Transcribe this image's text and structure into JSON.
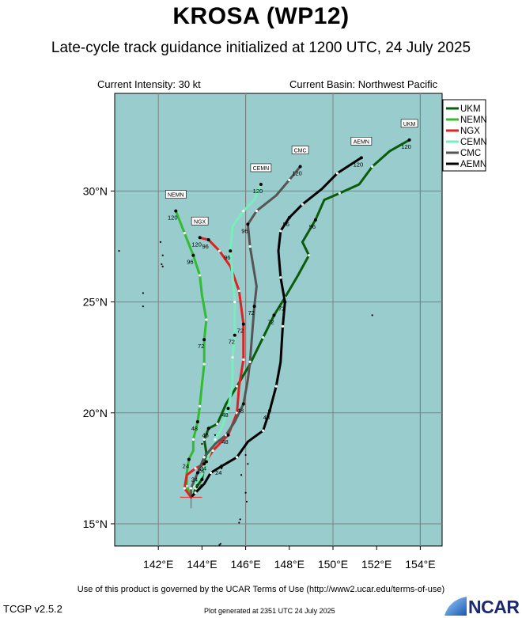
{
  "header": {
    "title": "KROSA (WP12)",
    "subtitle": "Late-cycle track guidance initialized at 1200 UTC, 24 July 2025",
    "intensity": "Current Intensity: 30 kt",
    "basin": "Current Basin: Northwest Pacific"
  },
  "footer": {
    "terms": "Use of this product is governed by the UCAR Terms of Use (http://www2.ucar.edu/terms-of-use)",
    "version": "TCGP v2.5.2",
    "plotted": "Plot generated at 2351 UTC  24 July 2025",
    "logo": "NCAR"
  },
  "colors": {
    "ocean": "#99cccc",
    "grid": "#808080",
    "UKM": "#0a5c0a",
    "NEMN": "#33bb33",
    "NGX": "#dd2222",
    "CEMN": "#77eebb",
    "CMC": "#555555",
    "AEMN": "#000000",
    "center": "#ff2222"
  },
  "chart_data": {
    "type": "line",
    "title": "KROSA (WP12)",
    "xlabel": "",
    "ylabel": "",
    "xlim": [
      140.0,
      155.0
    ],
    "ylim": [
      14.0,
      34.4
    ],
    "x_ticks": [
      142,
      144,
      146,
      148,
      150,
      152,
      154
    ],
    "x_tick_labels": [
      "142°E",
      "144°E",
      "146°E",
      "148°E",
      "150°E",
      "152°E",
      "154°E"
    ],
    "y_ticks": [
      15,
      20,
      25,
      30
    ],
    "y_tick_labels": [
      "15°N",
      "20°N",
      "25°N",
      "30°N"
    ],
    "grid": true,
    "legend_position": "top-right",
    "initial_position": [
      143.5,
      16.2
    ],
    "series": [
      {
        "name": "UKM",
        "points": [
          [
            143.5,
            16.2
          ],
          [
            143.7,
            16.6
          ],
          [
            144.0,
            17.0
          ],
          [
            144.1,
            17.6
          ],
          [
            144.2,
            18.2
          ],
          [
            144.1,
            18.8
          ],
          [
            144.3,
            19.3
          ],
          [
            144.7,
            19.5
          ],
          [
            145.1,
            20.4
          ],
          [
            145.6,
            21.2
          ],
          [
            146.2,
            22.2
          ],
          [
            146.8,
            23.4
          ],
          [
            147.3,
            24.4
          ],
          [
            147.8,
            25.2
          ],
          [
            148.4,
            26.2
          ],
          [
            148.9,
            27.1
          ],
          [
            148.6,
            27.7
          ],
          [
            149.2,
            28.7
          ],
          [
            149.6,
            29.6
          ],
          [
            150.3,
            29.9
          ],
          [
            151.2,
            30.3
          ],
          [
            151.8,
            31.1
          ],
          [
            152.6,
            31.8
          ],
          [
            153.5,
            32.3
          ]
        ],
        "labels": [
          {
            "x": 144.0,
            "y": 17.0,
            "text": "24"
          },
          {
            "x": 144.3,
            "y": 19.3,
            "text": "48"
          },
          {
            "x": 147.3,
            "y": 24.4,
            "text": "72"
          },
          {
            "x": 149.2,
            "y": 28.7,
            "text": "96"
          },
          {
            "x": 153.5,
            "y": 32.3,
            "text": "120"
          }
        ]
      },
      {
        "name": "NEMN",
        "points": [
          [
            143.5,
            16.2
          ],
          [
            143.3,
            16.7
          ],
          [
            143.3,
            17.3
          ],
          [
            143.4,
            17.9
          ],
          [
            143.6,
            18.3
          ],
          [
            143.6,
            18.8
          ],
          [
            143.8,
            19.6
          ],
          [
            143.9,
            20.3
          ],
          [
            144.0,
            21.3
          ],
          [
            144.1,
            22.2
          ],
          [
            144.1,
            23.3
          ],
          [
            144.2,
            24.2
          ],
          [
            144.0,
            25.3
          ],
          [
            143.9,
            26.2
          ],
          [
            143.6,
            27.1
          ],
          [
            143.2,
            28.1
          ],
          [
            142.8,
            29.1
          ]
        ],
        "labels": [
          {
            "x": 143.4,
            "y": 17.9,
            "text": "24"
          },
          {
            "x": 143.8,
            "y": 19.6,
            "text": "48"
          },
          {
            "x": 144.1,
            "y": 23.3,
            "text": "72"
          },
          {
            "x": 143.6,
            "y": 27.1,
            "text": "96"
          },
          {
            "x": 142.8,
            "y": 29.1,
            "text": "120"
          }
        ]
      },
      {
        "name": "NGX",
        "points": [
          [
            143.5,
            16.2
          ],
          [
            143.2,
            16.6
          ],
          [
            143.3,
            17.2
          ],
          [
            143.7,
            17.5
          ],
          [
            144.1,
            17.7
          ],
          [
            144.5,
            18.3
          ],
          [
            145.2,
            19.0
          ],
          [
            145.6,
            20.0
          ],
          [
            145.7,
            21.2
          ],
          [
            145.9,
            22.4
          ],
          [
            145.9,
            24.0
          ],
          [
            145.7,
            25.5
          ],
          [
            145.3,
            26.6
          ],
          [
            144.8,
            27.3
          ],
          [
            144.3,
            27.8
          ],
          [
            143.9,
            27.9
          ]
        ],
        "labels": [
          {
            "x": 144.1,
            "y": 17.7,
            "text": "24"
          },
          {
            "x": 145.2,
            "y": 19.0,
            "text": "48"
          },
          {
            "x": 145.9,
            "y": 24.0,
            "text": "72"
          },
          {
            "x": 144.3,
            "y": 27.8,
            "text": "96"
          },
          {
            "x": 143.9,
            "y": 27.9,
            "text": "120"
          }
        ]
      },
      {
        "name": "CEMN",
        "points": [
          [
            143.5,
            16.2
          ],
          [
            143.6,
            16.7
          ],
          [
            144.0,
            17.2
          ],
          [
            144.2,
            17.8
          ],
          [
            144.4,
            18.3
          ],
          [
            144.6,
            18.8
          ],
          [
            144.9,
            19.3
          ],
          [
            145.2,
            20.2
          ],
          [
            145.4,
            21.3
          ],
          [
            145.4,
            22.5
          ],
          [
            145.5,
            23.5
          ],
          [
            145.5,
            25.0
          ],
          [
            145.4,
            26.2
          ],
          [
            145.3,
            27.3
          ],
          [
            145.4,
            28.4
          ],
          [
            145.9,
            29.1
          ],
          [
            146.4,
            29.6
          ],
          [
            146.7,
            30.3
          ]
        ],
        "labels": [
          {
            "x": 144.2,
            "y": 17.8,
            "text": "24"
          },
          {
            "x": 145.2,
            "y": 20.2,
            "text": "48"
          },
          {
            "x": 145.5,
            "y": 23.5,
            "text": "72"
          },
          {
            "x": 145.3,
            "y": 27.3,
            "text": "96"
          },
          {
            "x": 146.7,
            "y": 30.3,
            "text": "120"
          }
        ]
      },
      {
        "name": "CMC",
        "points": [
          [
            143.5,
            16.2
          ],
          [
            143.5,
            16.6
          ],
          [
            143.8,
            17.3
          ],
          [
            144.1,
            18.0
          ],
          [
            144.6,
            18.6
          ],
          [
            145.1,
            19.0
          ],
          [
            145.5,
            19.6
          ],
          [
            145.9,
            20.4
          ],
          [
            146.1,
            21.5
          ],
          [
            146.2,
            22.3
          ],
          [
            146.3,
            23.6
          ],
          [
            146.4,
            24.8
          ],
          [
            146.5,
            25.7
          ],
          [
            146.2,
            27.5
          ],
          [
            146.1,
            28.5
          ],
          [
            146.5,
            29.1
          ],
          [
            147.4,
            29.8
          ],
          [
            148.0,
            30.5
          ],
          [
            148.5,
            31.1
          ]
        ],
        "labels": [
          {
            "x": 143.8,
            "y": 17.3,
            "text": "24"
          },
          {
            "x": 145.9,
            "y": 20.4,
            "text": "48"
          },
          {
            "x": 146.4,
            "y": 24.8,
            "text": "72"
          },
          {
            "x": 146.1,
            "y": 28.5,
            "text": "96"
          },
          {
            "x": 148.5,
            "y": 31.1,
            "text": "120"
          }
        ]
      },
      {
        "name": "AEMN",
        "points": [
          [
            143.5,
            16.2
          ],
          [
            143.7,
            16.4
          ],
          [
            144.1,
            16.8
          ],
          [
            144.4,
            17.3
          ],
          [
            144.9,
            17.6
          ],
          [
            145.6,
            18.0
          ],
          [
            146.1,
            18.7
          ],
          [
            146.8,
            19.2
          ],
          [
            147.1,
            20.1
          ],
          [
            147.4,
            21.2
          ],
          [
            147.6,
            22.3
          ],
          [
            147.7,
            23.9
          ],
          [
            147.8,
            25.0
          ],
          [
            147.6,
            26.1
          ],
          [
            147.5,
            27.3
          ],
          [
            147.6,
            28.2
          ],
          [
            148.0,
            28.8
          ],
          [
            148.6,
            29.4
          ],
          [
            149.5,
            30.1
          ],
          [
            150.2,
            30.8
          ],
          [
            151.3,
            31.5
          ]
        ],
        "labels": [
          {
            "x": 144.9,
            "y": 17.6,
            "text": "24"
          },
          {
            "x": 147.1,
            "y": 20.1,
            "text": "48"
          },
          {
            "x": 147.8,
            "y": 25.0,
            "text": "72"
          },
          {
            "x": 148.0,
            "y": 28.8,
            "text": "96"
          },
          {
            "x": 151.3,
            "y": 31.5,
            "text": "120"
          }
        ]
      }
    ]
  }
}
